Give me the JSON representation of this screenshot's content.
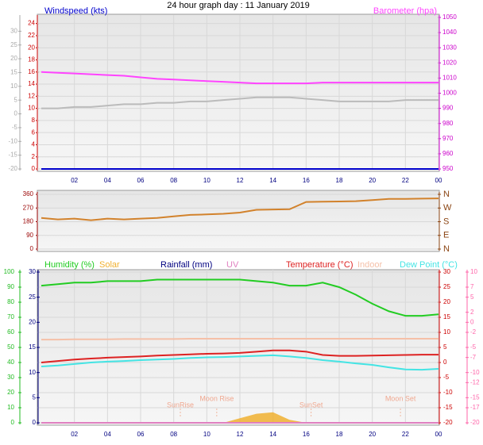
{
  "chart_data": [
    {
      "type": "line",
      "title": "24 hour graph day : 11 January 2019",
      "x": [
        0,
        1,
        2,
        3,
        4,
        5,
        6,
        7,
        8,
        9,
        10,
        11,
        12,
        13,
        14,
        15,
        16,
        17,
        18,
        19,
        20,
        21,
        22,
        23,
        24
      ],
      "xlim": [
        0,
        24
      ],
      "xticks": [
        {
          "value": 2,
          "label": "02"
        },
        {
          "value": 4,
          "label": "04"
        },
        {
          "value": 6,
          "label": "06"
        },
        {
          "value": 8,
          "label": "08"
        },
        10,
        12,
        14,
        16,
        18,
        20,
        22,
        {
          "value": 24,
          "label": "00"
        }
      ],
      "ylim": [
        0,
        25
      ],
      "yticks": [
        0,
        2,
        4,
        6,
        8,
        10,
        12,
        14,
        16,
        18,
        20,
        22,
        24
      ],
      "y2lim": [
        950,
        1050
      ],
      "y2ticks": [
        950,
        960,
        970,
        980,
        990,
        1000,
        1010,
        1020,
        1030,
        1040,
        1050
      ],
      "y3lim": [
        -20,
        35
      ],
      "y3ticks": [
        -20,
        -15,
        -10,
        -5,
        0,
        5,
        10,
        15,
        20,
        25,
        30
      ],
      "axis_colors": {
        "y": "#cc0000",
        "y2": "#cc00cc",
        "y3": "#aaaaaa"
      },
      "grid": true,
      "series": [
        {
          "name": "Windspeed (kts)",
          "color": "#0000cc",
          "values": [
            0,
            0,
            0,
            0,
            0,
            0,
            0,
            0,
            0,
            0,
            0,
            0,
            0,
            0,
            0,
            0,
            0,
            0,
            0,
            0,
            0,
            0,
            0,
            0,
            0
          ]
        },
        {
          "name": "Barometer (hpa)",
          "color": "#ff44ff",
          "axis": "y2",
          "values": [
            1014,
            1013.5,
            1013,
            1012.5,
            1012,
            1011.5,
            1010.5,
            1009.5,
            1009,
            1008.5,
            1008,
            1007.5,
            1007,
            1006.5,
            1006.5,
            1006.5,
            1006.5,
            1007,
            1007,
            1007,
            1007,
            1007,
            1007,
            1007,
            1007
          ]
        },
        {
          "color": "#bbbbbb",
          "axis": "y3",
          "values": [
            2,
            2,
            2.5,
            2.5,
            3,
            3.5,
            3.5,
            4,
            4,
            4.5,
            4.5,
            5,
            5.5,
            6,
            6,
            6,
            5.5,
            5,
            4.5,
            4.5,
            4.5,
            4.5,
            5,
            5,
            5
          ]
        }
      ]
    },
    {
      "type": "line",
      "x": [
        0,
        1,
        2,
        3,
        4,
        5,
        6,
        7,
        8,
        9,
        10,
        11,
        12,
        13,
        14,
        15,
        16,
        17,
        18,
        19,
        20,
        21,
        22,
        23,
        24
      ],
      "xlim": [
        0,
        24
      ],
      "ylim": [
        0,
        360
      ],
      "yticks": [
        0,
        90,
        180,
        270,
        360
      ],
      "y2lim": [
        0,
        360
      ],
      "y2ticks": [
        {
          "value": 0,
          "label": "N"
        },
        {
          "value": 90,
          "label": "E"
        },
        {
          "value": 180,
          "label": "S"
        },
        {
          "value": 270,
          "label": "W"
        },
        {
          "value": 360,
          "label": "N"
        }
      ],
      "axis_colors": {
        "y": "#990000",
        "y2": "#8b4513"
      },
      "grid": true,
      "series": [
        {
          "color": "#d2822c",
          "values": [
            205,
            195,
            200,
            190,
            200,
            195,
            200,
            205,
            215,
            225,
            228,
            232,
            240,
            258,
            260,
            262,
            310,
            312,
            313,
            315,
            322,
            330,
            330,
            332,
            333
          ]
        }
      ]
    },
    {
      "type": "line",
      "x": [
        0,
        1,
        2,
        3,
        4,
        5,
        6,
        7,
        8,
        9,
        10,
        11,
        12,
        13,
        14,
        15,
        16,
        17,
        18,
        19,
        20,
        21,
        22,
        23,
        24
      ],
      "xlim": [
        0,
        24
      ],
      "xticks": [
        {
          "value": 2,
          "label": "02"
        },
        {
          "value": 4,
          "label": "04"
        },
        {
          "value": 6,
          "label": "06"
        },
        {
          "value": 8,
          "label": "08"
        },
        10,
        12,
        14,
        16,
        18,
        20,
        22,
        {
          "value": 24,
          "label": "00"
        }
      ],
      "ylim": [
        0,
        100
      ],
      "yticks": [
        0,
        10,
        20,
        30,
        40,
        50,
        60,
        70,
        80,
        90,
        100
      ],
      "y2lim": [
        -20,
        30
      ],
      "y2ticks": [
        -20,
        -15,
        -10,
        -5,
        0,
        5,
        10,
        15,
        20,
        25,
        30
      ],
      "y3lim": [
        0,
        30
      ],
      "y3ticks": [
        0,
        5,
        10,
        15,
        20,
        25,
        30
      ],
      "y4lim": [
        -20,
        10
      ],
      "y4ticks": [
        -20,
        -17,
        -15,
        -12,
        -10,
        -7,
        -5,
        -2,
        0,
        2,
        5,
        7,
        10
      ],
      "axis_colors": {
        "y": "#22bb22",
        "y2": "#cc0000",
        "y3": "#000080",
        "y4": "#ff66aa"
      },
      "grid": true,
      "series": [
        {
          "name": "Humidity (%)",
          "color": "#22cc22",
          "values": [
            91,
            92,
            93,
            93,
            94,
            94,
            94,
            95,
            95,
            95,
            95,
            95,
            95,
            94,
            93,
            91,
            91,
            93,
            90,
            85,
            79,
            74,
            71,
            71,
            72
          ]
        },
        {
          "name": "Solar",
          "color": "#f0b030",
          "style": "area",
          "values": [
            0,
            0,
            0,
            0,
            0,
            0,
            0,
            0,
            0,
            0,
            0,
            0,
            3,
            6,
            7,
            2,
            0,
            0,
            0,
            0,
            0,
            0,
            0,
            0,
            0
          ]
        },
        {
          "name": "Rainfall (mm)",
          "color": "#000080",
          "axis": "y3",
          "values": [
            0,
            0,
            0,
            0,
            0,
            0,
            0,
            0,
            0,
            0,
            0,
            0,
            0,
            0,
            0,
            0,
            0,
            0,
            0,
            0,
            0,
            0,
            0,
            0,
            0
          ]
        },
        {
          "name": "UV",
          "color": "#e080c0",
          "axis": "y3",
          "values": [
            0,
            0,
            0,
            0,
            0,
            0,
            0,
            0,
            0,
            0,
            0,
            0,
            0,
            0,
            0,
            0,
            0,
            0,
            0,
            0,
            0,
            0,
            0,
            0,
            0
          ]
        },
        {
          "name": "Temperature (°C)",
          "color": "#dd2222",
          "axis": "y2",
          "values": [
            0,
            0.5,
            1,
            1.3,
            1.6,
            1.8,
            2,
            2.3,
            2.5,
            2.7,
            2.9,
            3,
            3.2,
            3.6,
            4,
            4,
            3.6,
            2.5,
            2.2,
            2.2,
            2.3,
            2.4,
            2.5,
            2.6,
            2.6
          ]
        },
        {
          "name": "Indoor",
          "color": "#f5c0a8",
          "axis": "y2",
          "values": [
            7.6,
            7.6,
            7.7,
            7.7,
            7.7,
            7.8,
            7.8,
            7.8,
            7.8,
            7.9,
            7.9,
            7.9,
            7.9,
            7.9,
            7.9,
            7.9,
            7.9,
            7.9,
            7.9,
            7.9,
            7.9,
            7.9,
            7.9,
            7.9,
            7.9
          ]
        },
        {
          "name": "Dew Point (°C)",
          "color": "#44e4e4",
          "axis": "y2",
          "values": [
            -1.3,
            -1,
            -0.5,
            0,
            0.3,
            0.5,
            0.8,
            1,
            1.2,
            1.5,
            1.7,
            1.8,
            2,
            2.2,
            2.4,
            2,
            1.5,
            0.8,
            0.3,
            -0.3,
            -0.8,
            -1.6,
            -2.3,
            -2.4,
            -2.1
          ]
        }
      ],
      "annotations": [
        {
          "text": "SunRise",
          "x": 8.4
        },
        {
          "text": "Moon Rise",
          "x": 10.6
        },
        {
          "text": "SunSet",
          "x": 16.3
        },
        {
          "text": "Moon Set",
          "x": 21.7
        }
      ]
    }
  ]
}
